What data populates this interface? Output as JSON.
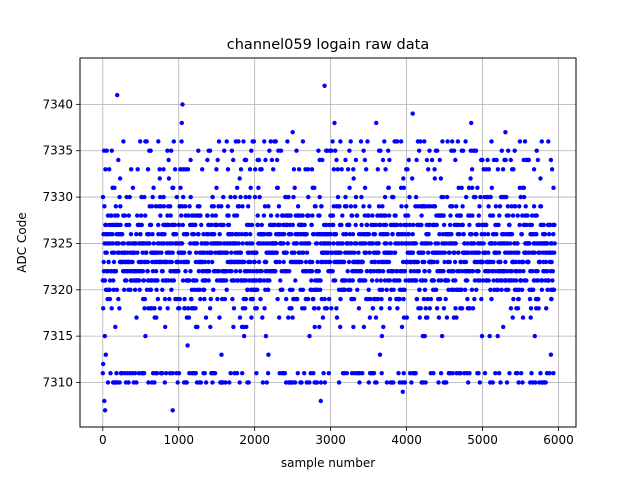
{
  "chart_data": {
    "type": "scatter",
    "title": "channel059 logain raw data",
    "xlabel": "sample number",
    "ylabel": "ADC Code",
    "xlim": [
      -300,
      6230
    ],
    "ylim": [
      7305.2,
      7345.0
    ],
    "xticks": [
      0,
      1000,
      2000,
      3000,
      4000,
      5000,
      6000
    ],
    "yticks": [
      7310,
      7315,
      7320,
      7325,
      7330,
      7335,
      7340
    ],
    "grid": true,
    "marker_color": "#0000ff",
    "n_samples": 5950,
    "y_dense_range": [
      7312,
      7332
    ],
    "y_center": 7324,
    "series": [
      {
        "x": [
          5,
          20,
          30,
          40,
          190,
          1050,
          2920,
          3050,
          3600,
          4080,
          4600,
          4850,
          5300,
          5780,
          920,
          1040,
          2870,
          3380,
          3950,
          4120,
          5900,
          180,
          600,
          1100,
          1440,
          1560,
          2180,
          2500,
          3650,
          4240
        ],
        "y": [
          7312,
          7308,
          7307,
          7313,
          7341,
          7340,
          7342,
          7338,
          7338,
          7339,
          7336,
          7338,
          7337,
          7336,
          7307,
          7338,
          7308,
          7310,
          7309,
          7311,
          7313,
          7311,
          7310,
          7310,
          7311,
          7310,
          7313,
          7337,
          7313,
          7315
        ]
      }
    ]
  },
  "colors": {
    "marker": "#0000ff",
    "grid": "#b0b0b0",
    "axes": "#000000",
    "background": "#ffffff"
  }
}
